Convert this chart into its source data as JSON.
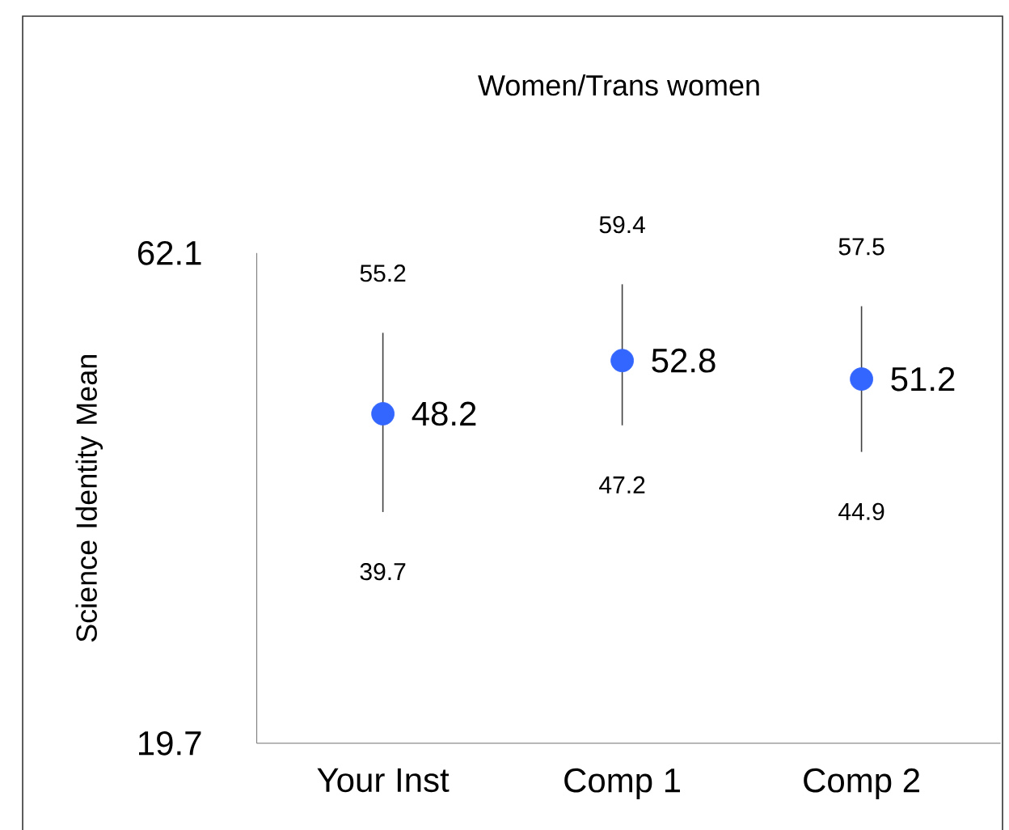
{
  "chart_data": {
    "type": "scatter",
    "title": "Women/Trans women",
    "ylabel": "Science Identity Mean",
    "categories": [
      "Your Inst",
      "Comp 1",
      "Comp 2"
    ],
    "values": [
      48.2,
      52.8,
      51.2
    ],
    "color": "#3366ff",
    "marker": "circle",
    "errors": [
      [
        39.7,
        55.2
      ],
      [
        47.2,
        59.4
      ],
      [
        44.9,
        57.5
      ]
    ],
    "data_labels": true,
    "ylim": [
      19.7,
      62.1
    ],
    "yticks": [
      19.7,
      62.1
    ],
    "annotations": [
      {
        "text": "55.2",
        "x": "Your Inst",
        "y": 55.2
      },
      {
        "text": "39.7",
        "x": "Your Inst",
        "y": 39.7
      },
      {
        "text": "59.4",
        "x": "Comp 1",
        "y": 59.4
      },
      {
        "text": "47.2",
        "x": "Comp 1",
        "y": 47.2
      },
      {
        "text": "57.5",
        "x": "Comp 2",
        "y": 57.5
      },
      {
        "text": "44.9",
        "x": "Comp 2",
        "y": 44.9
      }
    ]
  }
}
